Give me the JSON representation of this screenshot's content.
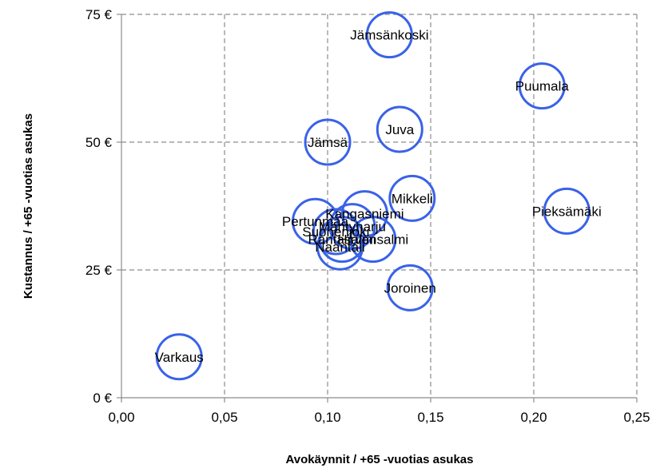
{
  "chart_data": {
    "type": "scatter",
    "xlabel": "Avokäynnit / +65 -vuotias asukas",
    "ylabel": "Kustannus / +65 -vuotias asukas",
    "xlim": [
      0,
      0.25
    ],
    "ylim": [
      0,
      75
    ],
    "x_ticks": [
      "0,00",
      "0,05",
      "0,10",
      "0,15",
      "0,20",
      "0,25"
    ],
    "y_ticks": [
      "0 €",
      "25 €",
      "50 €",
      "75 €"
    ],
    "grid": true,
    "marker_color": "#3a62e8",
    "points": [
      {
        "label": "Jämsänkoski",
        "x": 0.13,
        "y": 71
      },
      {
        "label": "Puumala",
        "x": 0.204,
        "y": 61
      },
      {
        "label": "Juva",
        "x": 0.135,
        "y": 52.5
      },
      {
        "label": "Jämsä",
        "x": 0.1,
        "y": 50
      },
      {
        "label": "Mikkeli",
        "x": 0.141,
        "y": 39
      },
      {
        "label": "Pieksämäki",
        "x": 0.216,
        "y": 36.5
      },
      {
        "label": "Kangasniemi",
        "x": 0.118,
        "y": 36
      },
      {
        "label": "Pertunmaa",
        "x": 0.094,
        "y": 34.5
      },
      {
        "label": "Mäntyharju",
        "x": 0.112,
        "y": 33.5
      },
      {
        "label": "Hirvensalmi",
        "x": 0.122,
        "y": 31
      },
      {
        "label": "Suonenjoki",
        "x": 0.104,
        "y": 32.5
      },
      {
        "label": "Rantasalmi",
        "x": 0.107,
        "y": 31
      },
      {
        "label": "Naantali",
        "x": 0.106,
        "y": 29.5
      },
      {
        "label": "Joroinen",
        "x": 0.14,
        "y": 21.5
      },
      {
        "label": "Varkaus",
        "x": 0.028,
        "y": 8
      }
    ]
  }
}
